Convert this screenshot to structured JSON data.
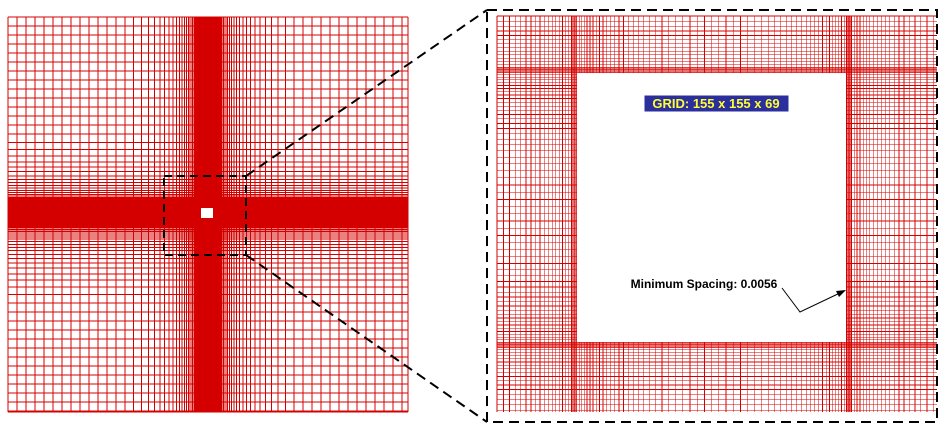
{
  "grid_label": "GRID: 155 x 155 x 69",
  "spacing_label": "Minimum Spacing: 0.0056",
  "colors": {
    "mesh": "#d40000",
    "label_bg": "#2b2f9e",
    "label_text": "#ffff33",
    "zoom_box": "#000000",
    "background": "#ffffff"
  }
}
